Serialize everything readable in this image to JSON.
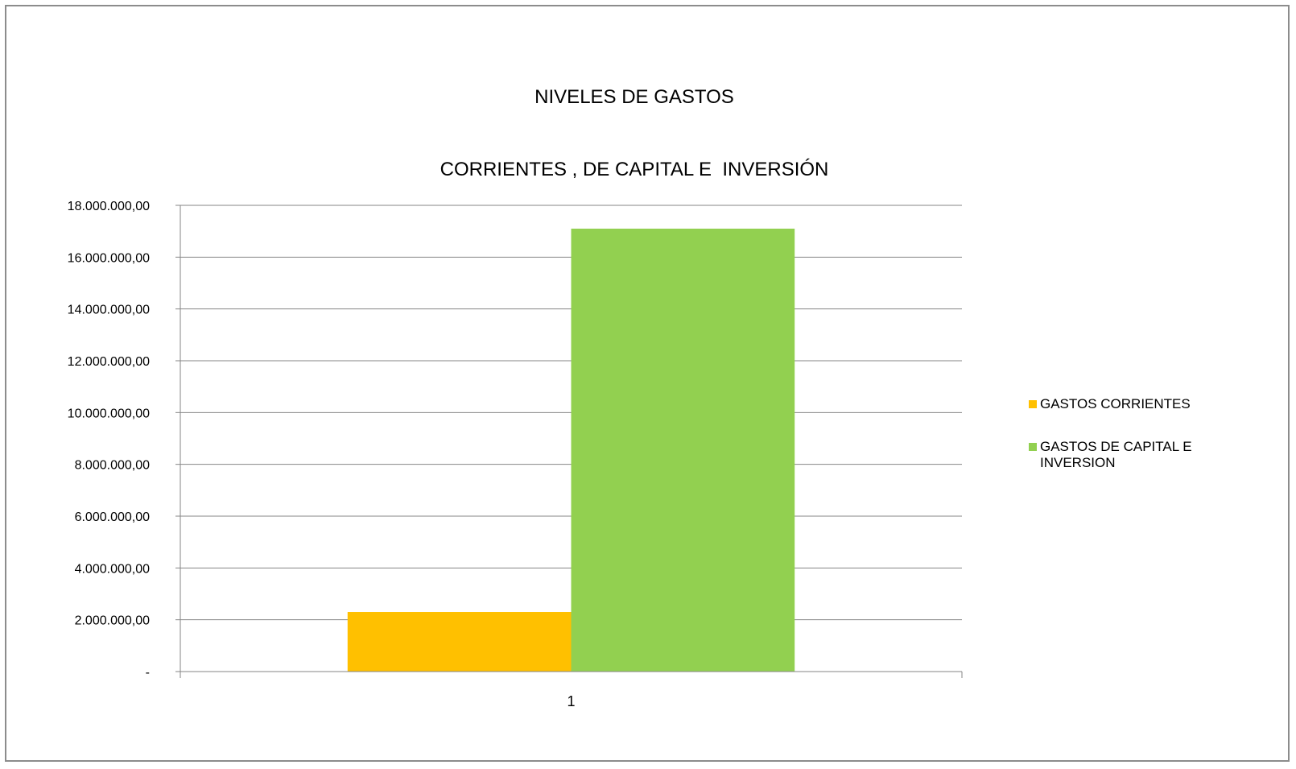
{
  "chart_data": {
    "type": "bar",
    "title_lines": [
      "NIVELES DE GASTOS",
      "CORRIENTES , DE CAPITAL E  INVERSIÓN"
    ],
    "categories": [
      "1"
    ],
    "series": [
      {
        "name": "GASTOS CORRIENTES",
        "values": [
          2300000
        ],
        "color": "#FFC000"
      },
      {
        "name": "GASTOS DE CAPITAL E INVERSION",
        "values": [
          17100000
        ],
        "color": "#92D050"
      }
    ],
    "ylim": [
      0,
      18000000
    ],
    "y_ticks": [
      0,
      2000000,
      4000000,
      6000000,
      8000000,
      10000000,
      12000000,
      14000000,
      16000000,
      18000000
    ],
    "y_tick_labels": [
      "-",
      "2.000.000,00",
      "4.000.000,00",
      "6.000.000,00",
      "8.000.000,00",
      "10.000.000,00",
      "12.000.000,00",
      "14.000.000,00",
      "16.000.000,00",
      "18.000.000,00"
    ],
    "grid": true,
    "legend_position": "right",
    "xlabel": "",
    "ylabel": ""
  }
}
